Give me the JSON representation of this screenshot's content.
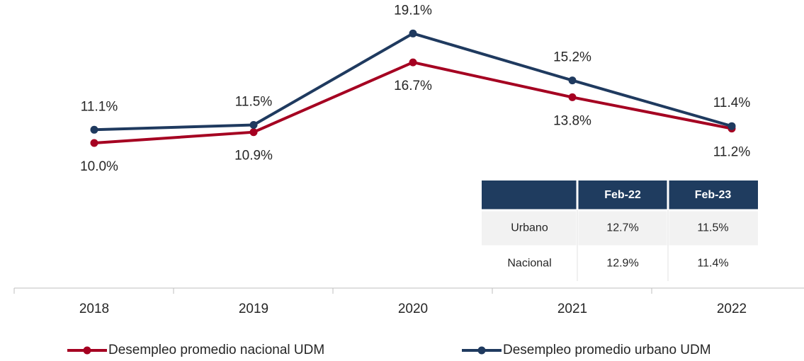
{
  "chart_data": {
    "type": "line",
    "categories": [
      "2018",
      "2019",
      "2020",
      "2021",
      "2022"
    ],
    "series": [
      {
        "name": "Desempleo promedio nacional UDM",
        "color": "#a50021",
        "values": [
          10.0,
          10.9,
          16.7,
          13.8,
          11.2
        ],
        "value_labels": [
          "10.0%",
          "10.9%",
          "16.7%",
          "13.8%",
          "11.2%"
        ]
      },
      {
        "name": "Desempleo promedio urbano UDM",
        "color": "#1f3a5f",
        "values": [
          11.1,
          11.5,
          19.1,
          15.2,
          11.4
        ],
        "value_labels": [
          "11.1%",
          "11.5%",
          "19.1%",
          "15.2%",
          "11.4%"
        ]
      }
    ],
    "table": {
      "header": [
        "Feb-22",
        "Feb-23"
      ],
      "rows": [
        [
          "Urbano",
          "12.7%",
          "11.5%"
        ],
        [
          "Nacional",
          "12.9%",
          "11.4%"
        ]
      ]
    }
  }
}
